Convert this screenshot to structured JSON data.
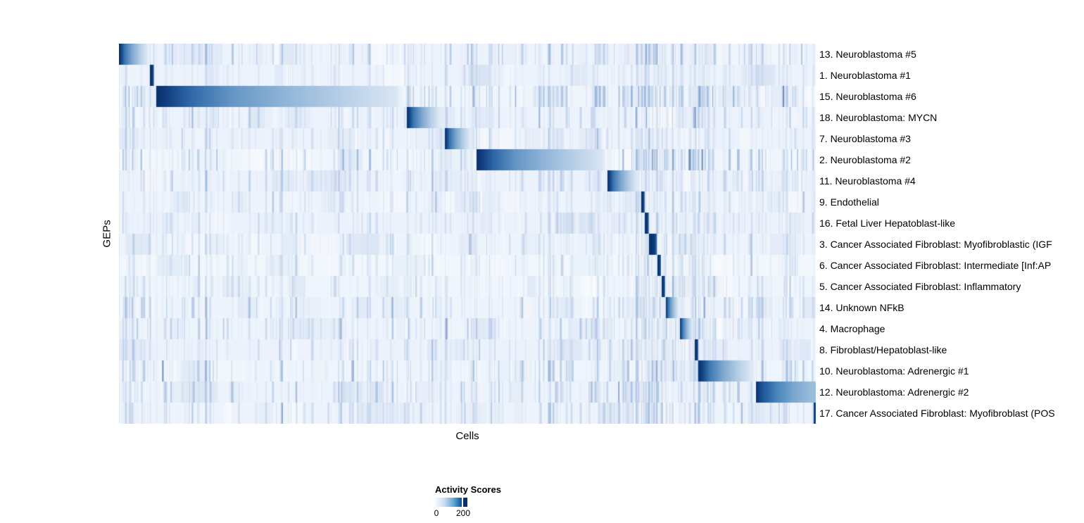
{
  "page": {
    "background": "#ffffff"
  },
  "chart_data": {
    "type": "heatmap",
    "title": "",
    "xlabel": "Cells",
    "ylabel": "GEPs",
    "x_axis": {
      "label": "Cells",
      "tick_labels": []
    },
    "y_axis": {
      "label": "GEPs"
    },
    "colorbar": {
      "title": "Activity Scores",
      "tick_labels": [
        "0",
        "200"
      ],
      "range": [
        0,
        200
      ]
    },
    "palette": {
      "low": "#f7fbff",
      "mid": "#4292c6",
      "high": "#08306b",
      "plot_background": "#eff5fc"
    },
    "rows": [
      {
        "label": "13. Neuroblastoma #5",
        "segment": {
          "x0": 0.0,
          "x1": 0.0465,
          "style": "fade"
        },
        "stripe_intensity": 0.5
      },
      {
        "label": "1. Neuroblastoma #1",
        "segment": {
          "x0": 0.0444,
          "x1": 0.0505,
          "style": "dark"
        },
        "stripe_intensity": 0.22
      },
      {
        "label": "15. Neuroblastoma #6",
        "segment": {
          "x0": 0.0535,
          "x1": 0.4121,
          "style": "longfade"
        },
        "stripe_intensity": 0.65
      },
      {
        "label": "18. Neuroblastoma: MYCN",
        "segment": {
          "x0": 0.4131,
          "x1": 0.4667,
          "style": "fade"
        },
        "stripe_intensity": 0.4
      },
      {
        "label": "7. Neuroblastoma #3",
        "segment": {
          "x0": 0.4677,
          "x1": 0.5081,
          "style": "fade"
        },
        "stripe_intensity": 0.28
      },
      {
        "label": "2. Neuroblastoma #2",
        "segment": {
          "x0": 0.5131,
          "x1": 0.701,
          "style": "longfade"
        },
        "stripe_intensity": 0.65
      },
      {
        "label": "11. Neuroblastoma #4",
        "segment": {
          "x0": 0.701,
          "x1": 0.7495,
          "style": "fade"
        },
        "stripe_intensity": 0.35
      },
      {
        "label": "9. Endothelial",
        "segment": {
          "x0": 0.7495,
          "x1": 0.7545,
          "style": "dark"
        },
        "stripe_intensity": 0.25
      },
      {
        "label": "16. Fetal Liver Hepatoblast-like",
        "segment": {
          "x0": 0.7545,
          "x1": 0.7606,
          "style": "dark"
        },
        "stripe_intensity": 0.28
      },
      {
        "label": "3. Cancer Associated Fibroblast: Myofibroblastic (IGF",
        "segment": {
          "x0": 0.7606,
          "x1": 0.7727,
          "style": "dark"
        },
        "stripe_intensity": 0.3
      },
      {
        "label": "6. Cancer Associated Fibroblast: Intermediate [Inf:AP",
        "segment": {
          "x0": 0.7727,
          "x1": 0.7778,
          "style": "dark"
        },
        "stripe_intensity": 0.28
      },
      {
        "label": "5. Cancer Associated Fibroblast: Inflammatory",
        "segment": {
          "x0": 0.7788,
          "x1": 0.7838,
          "style": "dark"
        },
        "stripe_intensity": 0.28
      },
      {
        "label": "14. Unknown NFkB",
        "segment": {
          "x0": 0.7848,
          "x1": 0.8051,
          "style": "fade"
        },
        "stripe_intensity": 0.5
      },
      {
        "label": "4. Macrophage",
        "segment": {
          "x0": 0.8051,
          "x1": 0.8253,
          "style": "fade"
        },
        "stripe_intensity": 0.45
      },
      {
        "label": "8. Fibroblast/Hepatoblast-like",
        "segment": {
          "x0": 0.8263,
          "x1": 0.8313,
          "style": "dark"
        },
        "stripe_intensity": 0.32
      },
      {
        "label": "10. Neuroblastoma: Adrenergic #1",
        "segment": {
          "x0": 0.8313,
          "x1": 0.9192,
          "style": "fade"
        },
        "stripe_intensity": 0.55
      },
      {
        "label": "12. Neuroblastoma: Adrenergic #2",
        "segment": {
          "x0": 0.9141,
          "x1": 1.0,
          "style": "cutfade"
        },
        "stripe_intensity": 0.45
      },
      {
        "label": "17. Cancer Associated Fibroblast: Myofibroblast (POS",
        "segment": {
          "x0": 0.997,
          "x1": 1.0,
          "style": "dark"
        },
        "stripe_intensity": 0.4
      }
    ]
  },
  "legend": {
    "title": "Activity Scores",
    "tick_labels": [
      "0",
      "200"
    ],
    "gradient": [
      "#f7fbff",
      "#c6dbef",
      "#6baed6",
      "#2171b5",
      "#08306b"
    ]
  }
}
